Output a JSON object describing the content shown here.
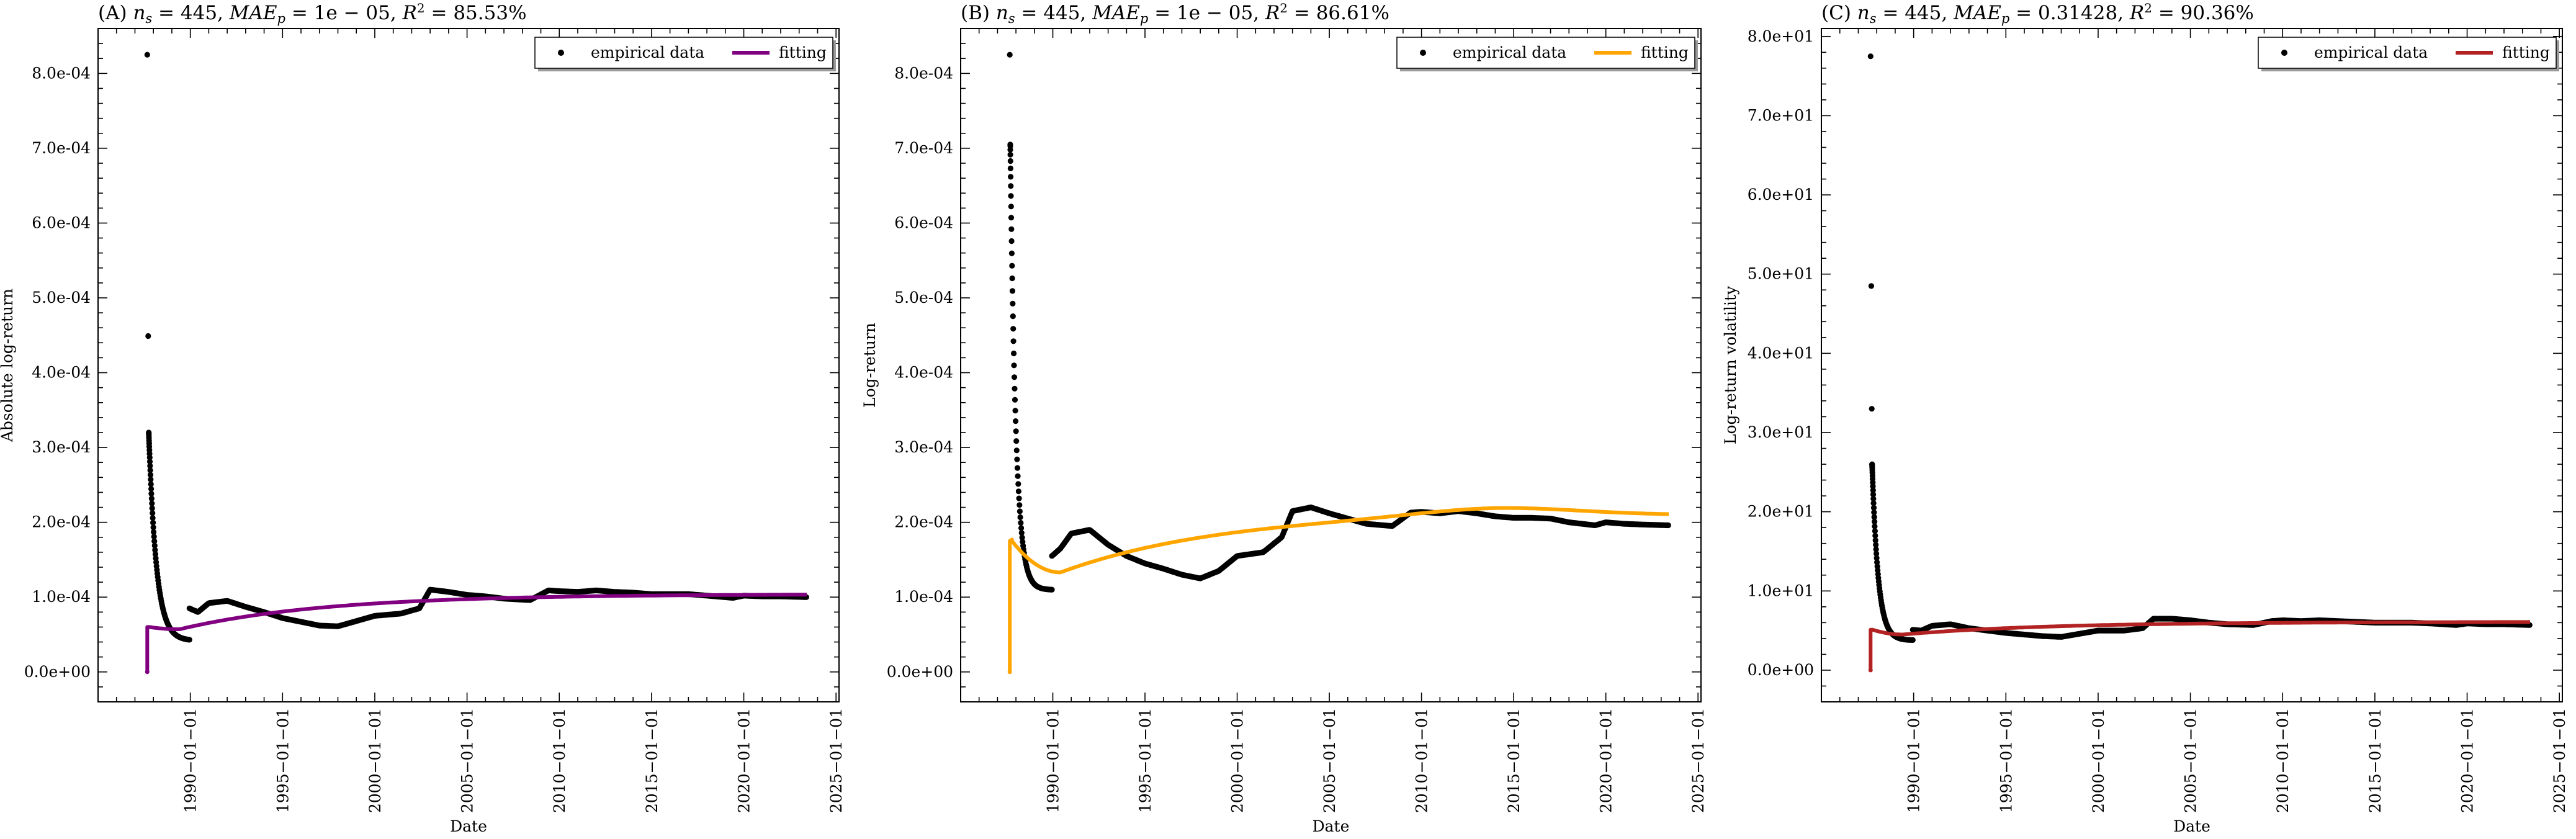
{
  "chart_data": [
    {
      "panel": "(A)",
      "title": "(A) n_s = 445, MAE_p = 1e−05, R² = 85.53%",
      "title_parts": {
        "letter": "(A) ",
        "ns": "445",
        "mae": "1e − 05",
        "r2": "85.53%"
      },
      "type": "scatter+line",
      "xlabel": "Date",
      "ylabel": "Absolute log-return",
      "x_ticks": [
        "1990-01-01",
        "1995-01-01",
        "2000-01-01",
        "2005-01-01",
        "2010-01-01",
        "2015-01-01",
        "2020-01-01",
        "2025-01-01"
      ],
      "y_ticks": [
        "0.0e+00",
        "1.0e-04",
        "2.0e-04",
        "3.0e-04",
        "4.0e-04",
        "5.0e-04",
        "6.0e-04",
        "7.0e-04",
        "8.0e-04"
      ],
      "xlim": [
        "1985-01-01",
        "2025-03-01"
      ],
      "ylim": [
        -4e-05,
        0.00086
      ],
      "fit_color": "#800080",
      "legend": {
        "data_label": "empirical data",
        "fit_label": "fitting",
        "position": "top-right"
      },
      "empirical": {
        "outliers": [
          [
            "1987-09-01",
            0.000825
          ],
          [
            "1987-09-20",
            0.000449
          ]
        ],
        "decay": {
          "start": [
            "1987-10-01",
            0.00032
          ],
          "end": [
            "1989-12-15",
            4.3e-05
          ],
          "tau_days": 150,
          "floor": 3e-05
        },
        "trend": [
          [
            "1989-12-15",
            8.5e-05
          ],
          [
            "1990-06-01",
            8e-05
          ],
          [
            "1991-01-01",
            9.2e-05
          ],
          [
            "1992-01-01",
            9.5e-05
          ],
          [
            "1993-01-01",
            8.7e-05
          ],
          [
            "1994-01-01",
            8e-05
          ],
          [
            "1995-01-01",
            7.2e-05
          ],
          [
            "1996-01-01",
            6.7e-05
          ],
          [
            "1997-01-01",
            6.2e-05
          ],
          [
            "1998-01-01",
            6.1e-05
          ],
          [
            "1999-01-01",
            6.8e-05
          ],
          [
            "2000-01-01",
            7.5e-05
          ],
          [
            "2001-06-01",
            7.8e-05
          ],
          [
            "2002-06-01",
            8.5e-05
          ],
          [
            "2003-01-01",
            0.00011
          ],
          [
            "2004-01-01",
            0.000107
          ],
          [
            "2005-01-01",
            0.000103
          ],
          [
            "2006-01-01",
            0.000101
          ],
          [
            "2007-01-01",
            9.8e-05
          ],
          [
            "2008-06-01",
            9.6e-05
          ],
          [
            "2009-06-01",
            0.000109
          ],
          [
            "2010-01-01",
            0.000108
          ],
          [
            "2011-01-01",
            0.000107
          ],
          [
            "2012-01-01",
            0.000109
          ],
          [
            "2013-01-01",
            0.000107
          ],
          [
            "2014-01-01",
            0.000106
          ],
          [
            "2015-01-01",
            0.000104
          ],
          [
            "2016-01-01",
            0.000104
          ],
          [
            "2017-01-01",
            0.000104
          ],
          [
            "2018-01-01",
            0.000102
          ],
          [
            "2019-06-01",
            9.9e-05
          ],
          [
            "2020-01-01",
            0.000102
          ],
          [
            "2021-01-01",
            0.000101
          ],
          [
            "2022-01-01",
            0.000101
          ],
          [
            "2023-06-01",
            0.0001
          ]
        ]
      },
      "fitting": {
        "start": [
          "1987-09-01",
          0.0
        ],
        "jump": [
          "1987-10-15",
          6e-05
        ],
        "dip": [
          "1989-06-01",
          5.7e-05
        ],
        "end": [
          "2023-06-01",
          0.000101
        ],
        "plateau": 0.000104,
        "tau_years": 8,
        "hump": 0
      }
    },
    {
      "panel": "(B)",
      "title": "(B) n_s = 445, MAE_p = 1e−05, R² = 86.61%",
      "title_parts": {
        "letter": "(B) ",
        "ns": "445",
        "mae": "1e − 05",
        "r2": "86.61%"
      },
      "type": "scatter+line",
      "xlabel": "Date",
      "ylabel": "Log-return",
      "x_ticks": [
        "1990-01-01",
        "1995-01-01",
        "2000-01-01",
        "2005-01-01",
        "2010-01-01",
        "2015-01-01",
        "2020-01-01",
        "2025-01-01"
      ],
      "y_ticks": [
        "0.0e+00",
        "1.0e-04",
        "2.0e-04",
        "3.0e-04",
        "4.0e-04",
        "5.0e-04",
        "6.0e-04",
        "7.0e-04",
        "8.0e-04"
      ],
      "xlim": [
        "1985-01-01",
        "2025-03-01"
      ],
      "ylim": [
        -4e-05,
        0.00086
      ],
      "fit_color": "#FFA500",
      "legend": {
        "data_label": "empirical data",
        "fit_label": "fitting",
        "position": "top-right"
      },
      "empirical": {
        "outliers": [
          [
            "1987-09-01",
            0.000825
          ]
        ],
        "decay": {
          "start": [
            "1987-09-10",
            0.000705
          ],
          "end": [
            "1989-12-15",
            0.00011
          ],
          "tau_days": 110,
          "floor": 0.0001
        },
        "trend": [
          [
            "1989-12-15",
            0.000155
          ],
          [
            "1990-06-01",
            0.000165
          ],
          [
            "1991-01-01",
            0.000185
          ],
          [
            "1992-01-01",
            0.00019
          ],
          [
            "1993-01-01",
            0.00017
          ],
          [
            "1994-01-01",
            0.000155
          ],
          [
            "1995-01-01",
            0.000145
          ],
          [
            "1996-01-01",
            0.000138
          ],
          [
            "1997-01-01",
            0.00013
          ],
          [
            "1998-01-01",
            0.000125
          ],
          [
            "1999-01-01",
            0.000135
          ],
          [
            "2000-01-01",
            0.000155
          ],
          [
            "2001-06-01",
            0.00016
          ],
          [
            "2002-06-01",
            0.00018
          ],
          [
            "2003-01-01",
            0.000215
          ],
          [
            "2004-01-01",
            0.00022
          ],
          [
            "2005-01-01",
            0.000212
          ],
          [
            "2006-01-01",
            0.000205
          ],
          [
            "2007-01-01",
            0.000198
          ],
          [
            "2008-06-01",
            0.000195
          ],
          [
            "2009-06-01",
            0.000213
          ],
          [
            "2010-01-01",
            0.000214
          ],
          [
            "2011-01-01",
            0.000212
          ],
          [
            "2012-01-01",
            0.000215
          ],
          [
            "2013-01-01",
            0.000212
          ],
          [
            "2014-01-01",
            0.000208
          ],
          [
            "2015-01-01",
            0.000206
          ],
          [
            "2016-01-01",
            0.000206
          ],
          [
            "2017-01-01",
            0.000205
          ],
          [
            "2018-01-01",
            0.0002
          ],
          [
            "2019-06-01",
            0.000196
          ],
          [
            "2020-01-01",
            0.0002
          ],
          [
            "2021-01-01",
            0.000198
          ],
          [
            "2022-01-01",
            0.000197
          ],
          [
            "2023-06-01",
            0.000196
          ]
        ]
      },
      "fitting": {
        "start": [
          "1987-09-01",
          0.0
        ],
        "jump": [
          "1987-10-15",
          0.000175
        ],
        "dip": [
          "1990-06-01",
          0.000133
        ],
        "end": [
          "2023-06-01",
          0.000197
        ],
        "plateau": 0.000215,
        "tau_years": 9,
        "hump": 1e-05
      }
    },
    {
      "panel": "(C)",
      "title": "(C) n_s = 445, MAE_p = 0.31428, R² = 90.36%",
      "title_parts": {
        "letter": "(C) ",
        "ns": "445",
        "mae": "0.31428",
        "r2": "90.36%"
      },
      "type": "scatter+line",
      "xlabel": "Date",
      "ylabel": "Log-return volatility",
      "x_ticks": [
        "1990-01-01",
        "1995-01-01",
        "2000-01-01",
        "2005-01-01",
        "2010-01-01",
        "2015-01-01",
        "2020-01-01",
        "2025-01-01"
      ],
      "y_ticks": [
        "0.0e+00",
        "1.0e+01",
        "2.0e+01",
        "3.0e+01",
        "4.0e+01",
        "5.0e+01",
        "6.0e+01",
        "7.0e+01",
        "8.0e+01"
      ],
      "xlim": [
        "1985-01-01",
        "2025-03-01"
      ],
      "ylim": [
        -4,
        81
      ],
      "fit_color": "#B22222",
      "legend": {
        "data_label": "empirical data",
        "fit_label": "fitting",
        "position": "top-right"
      },
      "empirical": {
        "outliers": [
          [
            "1987-09-01",
            77.5
          ],
          [
            "1987-09-15",
            48.5
          ],
          [
            "1987-09-25",
            33.0
          ]
        ],
        "decay": {
          "start": [
            "1987-10-01",
            26.0
          ],
          "end": [
            "1989-12-15",
            3.8
          ],
          "tau_days": 120,
          "floor": 3.5
        },
        "trend": [
          [
            "1989-12-15",
            5.1
          ],
          [
            "1990-06-01",
            5.0
          ],
          [
            "1991-01-01",
            5.6
          ],
          [
            "1992-01-01",
            5.8
          ],
          [
            "1993-01-01",
            5.3
          ],
          [
            "1994-01-01",
            5.0
          ],
          [
            "1995-01-01",
            4.7
          ],
          [
            "1996-01-01",
            4.5
          ],
          [
            "1997-01-01",
            4.3
          ],
          [
            "1998-01-01",
            4.2
          ],
          [
            "1999-01-01",
            4.6
          ],
          [
            "2000-01-01",
            5.0
          ],
          [
            "2001-06-01",
            5.0
          ],
          [
            "2002-06-01",
            5.3
          ],
          [
            "2003-01-01",
            6.5
          ],
          [
            "2004-01-01",
            6.5
          ],
          [
            "2005-01-01",
            6.3
          ],
          [
            "2006-01-01",
            6.0
          ],
          [
            "2007-01-01",
            5.8
          ],
          [
            "2008-06-01",
            5.7
          ],
          [
            "2009-06-01",
            6.2
          ],
          [
            "2010-01-01",
            6.3
          ],
          [
            "2011-01-01",
            6.2
          ],
          [
            "2012-01-01",
            6.3
          ],
          [
            "2013-01-01",
            6.2
          ],
          [
            "2014-01-01",
            6.1
          ],
          [
            "2015-01-01",
            6.0
          ],
          [
            "2016-01-01",
            6.0
          ],
          [
            "2017-01-01",
            6.0
          ],
          [
            "2018-01-01",
            5.9
          ],
          [
            "2019-06-01",
            5.7
          ],
          [
            "2020-01-01",
            5.9
          ],
          [
            "2021-01-01",
            5.8
          ],
          [
            "2022-01-01",
            5.8
          ],
          [
            "2023-06-01",
            5.7
          ]
        ]
      },
      "fitting": {
        "start": [
          "1987-09-01",
          0.0
        ],
        "jump": [
          "1987-10-15",
          5.1
        ],
        "dip": [
          "1989-06-01",
          4.5
        ],
        "end": [
          "2023-06-01",
          5.8
        ],
        "plateau": 6.1,
        "tau_years": 8,
        "hump": 0
      }
    }
  ]
}
